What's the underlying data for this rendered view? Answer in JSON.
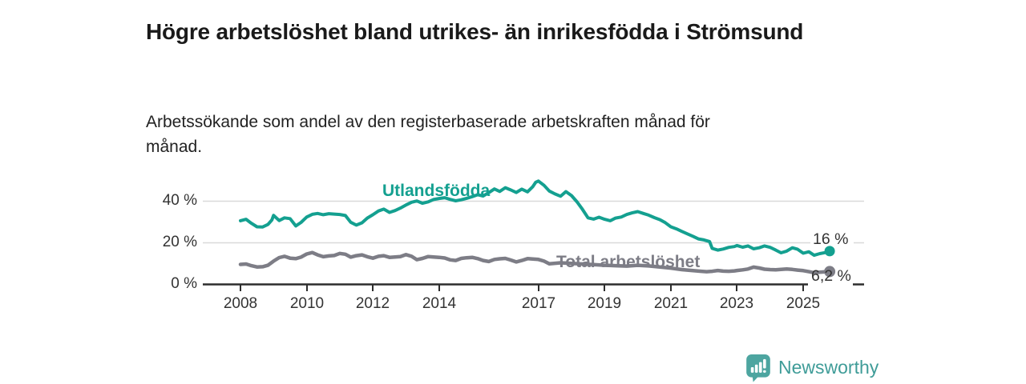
{
  "header": {
    "title": "Högre arbetslöshet bland utrikes- än inrikesfödda i Strömsund",
    "subtitle": "Arbetssökande som andel av den registerbaserade arbetskraften månad för månad."
  },
  "chart_data": {
    "type": "line",
    "title": "Högre arbetslöshet bland utrikes- än inrikesfödda i Strömsund",
    "subtitle": "Arbetssökande som andel av den registerbaserade arbetskraften månad för månad.",
    "unit": "%",
    "grid": "horizontal",
    "legend": "inline-labels",
    "x_axis": {
      "tick_labels": [
        "2008",
        "2010",
        "2012",
        "2014",
        "2017",
        "2019",
        "2021",
        "2023",
        "2025"
      ],
      "tick_years": [
        2008,
        2010,
        2012,
        2014,
        2017,
        2019,
        2021,
        2023,
        2025
      ],
      "range": [
        2006.8,
        2026.8
      ]
    },
    "y_axis": {
      "tick_labels": [
        "0 %",
        "20 %",
        "40 %"
      ],
      "tick_values": [
        0,
        20,
        40
      ],
      "range": [
        0,
        52
      ]
    },
    "series": [
      {
        "name": "Utlandsfödda",
        "color": "#14a090",
        "end_label": "16 %",
        "end_value": 16,
        "points": [
          [
            2008.0,
            30.6
          ],
          [
            2008.17,
            31.3
          ],
          [
            2008.33,
            29.4
          ],
          [
            2008.5,
            27.7
          ],
          [
            2008.67,
            27.6
          ],
          [
            2008.83,
            28.8
          ],
          [
            2008.95,
            31.0
          ],
          [
            2009.0,
            33.2
          ],
          [
            2009.17,
            30.7
          ],
          [
            2009.33,
            32.0
          ],
          [
            2009.5,
            31.6
          ],
          [
            2009.67,
            28.1
          ],
          [
            2009.83,
            29.8
          ],
          [
            2010.0,
            32.4
          ],
          [
            2010.17,
            33.7
          ],
          [
            2010.33,
            34.1
          ],
          [
            2010.5,
            33.5
          ],
          [
            2010.67,
            34.0
          ],
          [
            2010.83,
            33.8
          ],
          [
            2011.0,
            33.6
          ],
          [
            2011.17,
            33.1
          ],
          [
            2011.33,
            29.9
          ],
          [
            2011.5,
            28.5
          ],
          [
            2011.67,
            29.6
          ],
          [
            2011.83,
            31.9
          ],
          [
            2012.0,
            33.5
          ],
          [
            2012.17,
            35.3
          ],
          [
            2012.33,
            36.2
          ],
          [
            2012.5,
            34.6
          ],
          [
            2012.67,
            35.5
          ],
          [
            2012.83,
            36.7
          ],
          [
            2013.0,
            38.2
          ],
          [
            2013.17,
            39.5
          ],
          [
            2013.33,
            40.1
          ],
          [
            2013.5,
            39.0
          ],
          [
            2013.67,
            39.7
          ],
          [
            2013.83,
            40.8
          ],
          [
            2014.0,
            41.3
          ],
          [
            2014.17,
            41.7
          ],
          [
            2014.33,
            40.9
          ],
          [
            2014.5,
            40.2
          ],
          [
            2014.67,
            40.7
          ],
          [
            2014.83,
            41.4
          ],
          [
            2015.0,
            42.2
          ],
          [
            2015.17,
            43.1
          ],
          [
            2015.33,
            42.5
          ],
          [
            2015.5,
            44.1
          ],
          [
            2015.67,
            45.9
          ],
          [
            2015.83,
            44.7
          ],
          [
            2016.0,
            46.5
          ],
          [
            2016.17,
            45.4
          ],
          [
            2016.33,
            44.2
          ],
          [
            2016.5,
            45.8
          ],
          [
            2016.67,
            44.5
          ],
          [
            2016.83,
            47.0
          ],
          [
            2016.92,
            49.1
          ],
          [
            2017.0,
            49.7
          ],
          [
            2017.17,
            47.6
          ],
          [
            2017.33,
            44.9
          ],
          [
            2017.5,
            43.5
          ],
          [
            2017.67,
            42.4
          ],
          [
            2017.83,
            44.6
          ],
          [
            2018.0,
            42.7
          ],
          [
            2018.17,
            39.6
          ],
          [
            2018.33,
            36.1
          ],
          [
            2018.5,
            32.0
          ],
          [
            2018.67,
            31.4
          ],
          [
            2018.83,
            32.3
          ],
          [
            2019.0,
            31.3
          ],
          [
            2019.17,
            30.6
          ],
          [
            2019.33,
            31.9
          ],
          [
            2019.5,
            32.4
          ],
          [
            2019.67,
            33.6
          ],
          [
            2019.83,
            34.4
          ],
          [
            2020.0,
            35.0
          ],
          [
            2020.17,
            34.1
          ],
          [
            2020.33,
            33.3
          ],
          [
            2020.5,
            32.1
          ],
          [
            2020.67,
            31.1
          ],
          [
            2020.83,
            29.7
          ],
          [
            2021.0,
            27.7
          ],
          [
            2021.17,
            26.7
          ],
          [
            2021.33,
            25.5
          ],
          [
            2021.5,
            24.3
          ],
          [
            2021.67,
            23.1
          ],
          [
            2021.83,
            21.9
          ],
          [
            2022.0,
            21.4
          ],
          [
            2022.17,
            20.6
          ],
          [
            2022.25,
            17.3
          ],
          [
            2022.42,
            16.5
          ],
          [
            2022.58,
            17.0
          ],
          [
            2022.75,
            17.8
          ],
          [
            2022.92,
            18.2
          ],
          [
            2023.0,
            18.7
          ],
          [
            2023.17,
            17.9
          ],
          [
            2023.33,
            18.5
          ],
          [
            2023.5,
            17.1
          ],
          [
            2023.67,
            17.6
          ],
          [
            2023.83,
            18.5
          ],
          [
            2024.0,
            17.8
          ],
          [
            2024.17,
            16.5
          ],
          [
            2024.33,
            15.2
          ],
          [
            2024.5,
            16.0
          ],
          [
            2024.67,
            17.6
          ],
          [
            2024.83,
            16.9
          ],
          [
            2025.0,
            15.0
          ],
          [
            2025.17,
            15.7
          ],
          [
            2025.33,
            14.0
          ],
          [
            2025.5,
            14.8
          ],
          [
            2025.67,
            15.3
          ],
          [
            2025.8,
            16.0
          ]
        ]
      },
      {
        "name": "Total arbetslöshet",
        "color": "#7d7d86",
        "end_label": "6,2 %",
        "end_value": 6.2,
        "points": [
          [
            2008.0,
            9.6
          ],
          [
            2008.17,
            9.8
          ],
          [
            2008.33,
            9.0
          ],
          [
            2008.5,
            8.4
          ],
          [
            2008.67,
            8.5
          ],
          [
            2008.83,
            9.2
          ],
          [
            2009.0,
            11.2
          ],
          [
            2009.17,
            12.9
          ],
          [
            2009.33,
            13.5
          ],
          [
            2009.5,
            12.6
          ],
          [
            2009.67,
            12.4
          ],
          [
            2009.83,
            13.1
          ],
          [
            2010.0,
            14.6
          ],
          [
            2010.17,
            15.3
          ],
          [
            2010.33,
            14.2
          ],
          [
            2010.5,
            13.3
          ],
          [
            2010.67,
            13.7
          ],
          [
            2010.83,
            13.9
          ],
          [
            2011.0,
            14.9
          ],
          [
            2011.17,
            14.5
          ],
          [
            2011.33,
            13.1
          ],
          [
            2011.5,
            13.8
          ],
          [
            2011.67,
            14.2
          ],
          [
            2011.83,
            13.3
          ],
          [
            2012.0,
            12.6
          ],
          [
            2012.17,
            13.5
          ],
          [
            2012.33,
            13.8
          ],
          [
            2012.5,
            13.0
          ],
          [
            2012.67,
            13.2
          ],
          [
            2012.83,
            13.4
          ],
          [
            2013.0,
            14.3
          ],
          [
            2013.17,
            13.5
          ],
          [
            2013.33,
            11.9
          ],
          [
            2013.5,
            12.5
          ],
          [
            2013.67,
            13.4
          ],
          [
            2013.83,
            13.2
          ],
          [
            2014.0,
            13.0
          ],
          [
            2014.17,
            12.7
          ],
          [
            2014.33,
            11.8
          ],
          [
            2014.5,
            11.5
          ],
          [
            2014.67,
            12.5
          ],
          [
            2014.83,
            12.8
          ],
          [
            2015.0,
            13.0
          ],
          [
            2015.17,
            12.4
          ],
          [
            2015.33,
            11.5
          ],
          [
            2015.5,
            11.0
          ],
          [
            2015.67,
            12.0
          ],
          [
            2015.83,
            12.3
          ],
          [
            2016.0,
            12.5
          ],
          [
            2016.17,
            11.7
          ],
          [
            2016.33,
            10.8
          ],
          [
            2016.5,
            11.5
          ],
          [
            2016.67,
            12.4
          ],
          [
            2016.83,
            12.2
          ],
          [
            2017.0,
            12.0
          ],
          [
            2017.17,
            11.2
          ],
          [
            2017.33,
            9.9
          ],
          [
            2017.67,
            10.4
          ],
          [
            2018.0,
            10.1
          ],
          [
            2018.33,
            9.8
          ],
          [
            2018.67,
            9.5
          ],
          [
            2019.0,
            9.2
          ],
          [
            2019.33,
            9.0
          ],
          [
            2019.67,
            8.8
          ],
          [
            2020.0,
            9.2
          ],
          [
            2020.33,
            8.9
          ],
          [
            2020.67,
            8.4
          ],
          [
            2021.0,
            7.8
          ],
          [
            2021.33,
            7.1
          ],
          [
            2021.67,
            6.6
          ],
          [
            2021.92,
            6.3
          ],
          [
            2022.08,
            6.1
          ],
          [
            2022.25,
            6.3
          ],
          [
            2022.42,
            6.7
          ],
          [
            2022.58,
            6.4
          ],
          [
            2022.75,
            6.3
          ],
          [
            2022.92,
            6.5
          ],
          [
            2023.0,
            6.7
          ],
          [
            2023.17,
            7.0
          ],
          [
            2023.33,
            7.4
          ],
          [
            2023.5,
            8.3
          ],
          [
            2023.67,
            7.9
          ],
          [
            2023.83,
            7.3
          ],
          [
            2024.0,
            7.1
          ],
          [
            2024.17,
            7.0
          ],
          [
            2024.33,
            7.2
          ],
          [
            2024.5,
            7.4
          ],
          [
            2024.67,
            7.2
          ],
          [
            2024.83,
            6.9
          ],
          [
            2025.0,
            6.6
          ],
          [
            2025.17,
            6.1
          ],
          [
            2025.33,
            5.6
          ],
          [
            2025.5,
            5.9
          ],
          [
            2025.8,
            6.2
          ]
        ]
      }
    ],
    "colors": {
      "grid": "#d9d9d9",
      "axis": "#2d2d2d",
      "tick_text": "#333333"
    }
  },
  "branding": {
    "name": "Newsworthy",
    "icon": "newsworthy-bar-chart-icon",
    "color": "#3f9c98",
    "icon_color": "#4da5a0"
  }
}
